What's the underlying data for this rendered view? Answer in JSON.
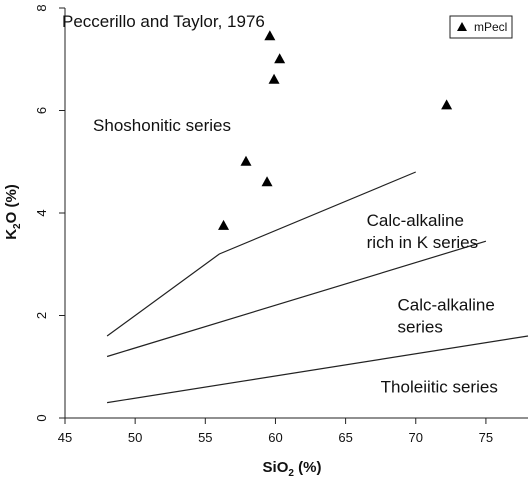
{
  "chart_data": {
    "type": "scatter",
    "title": "Peccerillo and Taylor, 1976",
    "xlabel": {
      "main": "SiO",
      "sub": "2",
      "rest": " (%)"
    },
    "ylabel": {
      "main": "K",
      "sub": "2",
      "rest": "O (%)"
    },
    "xlim": [
      45,
      78
    ],
    "ylim": [
      0,
      8
    ],
    "xticks": [
      45,
      50,
      55,
      60,
      65,
      70,
      75
    ],
    "yticks": [
      0,
      2,
      4,
      6,
      8
    ],
    "legend": {
      "position": "top-right",
      "entries": [
        "mPecl"
      ]
    },
    "series": [
      {
        "name": "mPecl",
        "marker": "triangle",
        "points": [
          {
            "x": 59.6,
            "y": 7.45
          },
          {
            "x": 60.3,
            "y": 7.0
          },
          {
            "x": 59.9,
            "y": 6.6
          },
          {
            "x": 72.2,
            "y": 6.1
          },
          {
            "x": 57.9,
            "y": 5.0
          },
          {
            "x": 59.4,
            "y": 4.6
          },
          {
            "x": 56.3,
            "y": 3.75
          }
        ]
      }
    ],
    "boundaries": [
      {
        "points": [
          [
            48,
            1.6
          ],
          [
            56,
            3.2
          ],
          [
            70,
            4.8
          ]
        ]
      },
      {
        "points": [
          [
            48,
            1.2
          ],
          [
            75,
            3.45
          ]
        ]
      },
      {
        "points": [
          [
            48,
            0.3
          ],
          [
            78,
            1.6
          ]
        ]
      }
    ],
    "region_labels": [
      {
        "lines": [
          "Shoshonitic series"
        ],
        "x": 47,
        "y": 5.6
      },
      {
        "lines": [
          "Calc-alkaline",
          "rich in K series"
        ],
        "x": 66.5,
        "y": 3.75
      },
      {
        "lines": [
          "Calc-alkaline",
          "series"
        ],
        "x": 68.7,
        "y": 2.1
      },
      {
        "lines": [
          "Tholeiitic series"
        ],
        "x": 67.5,
        "y": 0.5
      }
    ]
  }
}
